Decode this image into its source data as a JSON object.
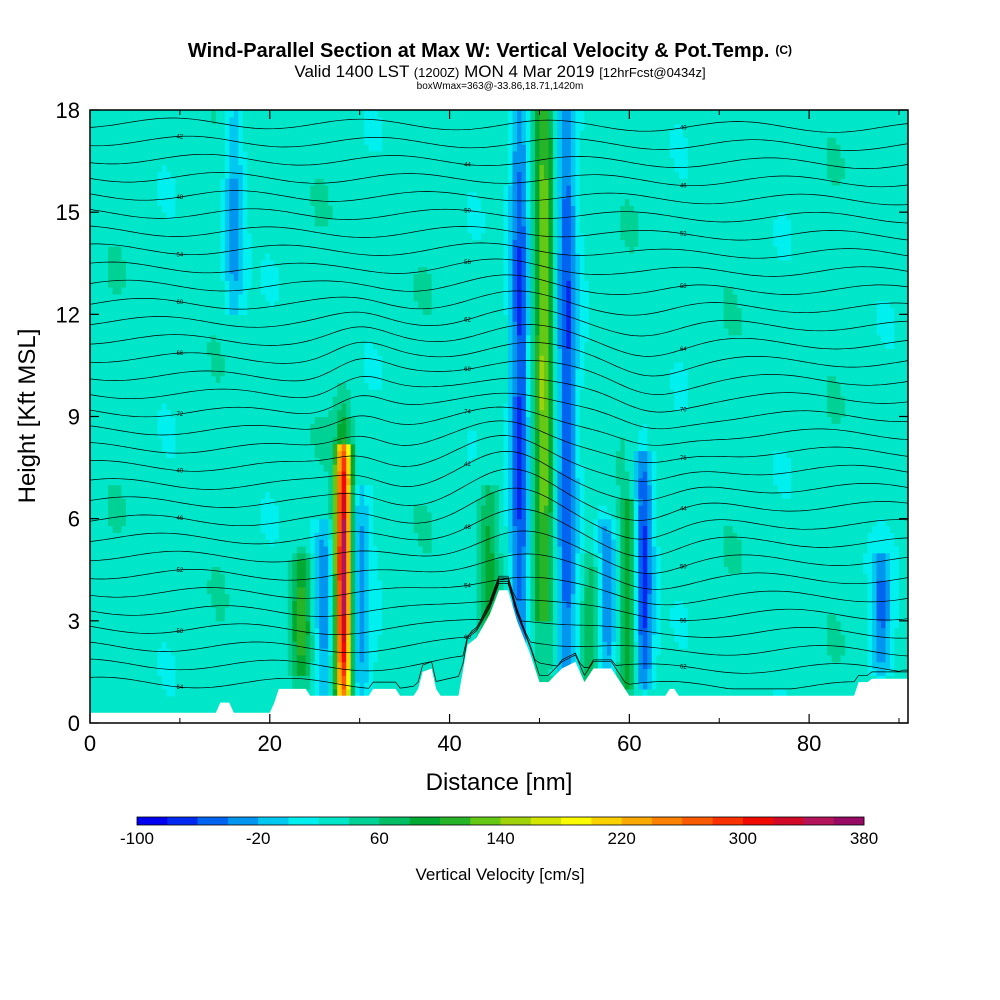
{
  "chart_data": {
    "type": "heatmap",
    "title": "Wind-Parallel Section at Max W: Vertical Velocity & Pot.Temp.",
    "title_mark": "(C)",
    "subtitle_main": "Valid 1400 LST",
    "subtitle_z": "(1200Z)",
    "subtitle_date": "MON 4 Mar 2019",
    "subtitle_fcst": "[12hrFcst@0434z]",
    "subtitle_box": "boxWmax=363@-33.86,18.71,1420m",
    "xlabel": "Distance [nm]",
    "ylabel": "Height [Kft MSL]",
    "xlim": [
      0,
      91
    ],
    "ylim": [
      0,
      18
    ],
    "x_ticks": [
      0,
      20,
      40,
      60,
      80
    ],
    "y_ticks": [
      0,
      3,
      6,
      9,
      12,
      15,
      18
    ],
    "colorbar": {
      "label": "Vertical Velocity [cm/s]",
      "range": [
        -100,
        380
      ],
      "tick_values": [
        -100,
        -20,
        60,
        140,
        220,
        300,
        380
      ],
      "colors": [
        "#0000f0",
        "#0028f0",
        "#0064f0",
        "#0096f0",
        "#00c8f0",
        "#00f0f0",
        "#00e6c8",
        "#00d296",
        "#00be64",
        "#00aa32",
        "#28b428",
        "#64c814",
        "#a0d20a",
        "#d2e600",
        "#fafa00",
        "#fad200",
        "#faaa00",
        "#fa8200",
        "#fa5a00",
        "#fa3200",
        "#f00a00",
        "#d20a28",
        "#b4145a",
        "#960a64"
      ]
    },
    "background_wvel": 30,
    "updrafts": [
      {
        "x": 28.2,
        "y_base": 0.8,
        "y_top": 8.2,
        "peak": 363
      },
      {
        "x": 23.5,
        "y_base": 1.5,
        "y_top": 5.0,
        "peak": 110
      },
      {
        "x": 50.5,
        "y_base": 3.0,
        "y_top": 18.0,
        "peak": 140
      },
      {
        "x": 44.3,
        "y_base": 2.0,
        "y_top": 7.0,
        "peak": 90
      },
      {
        "x": 60.0,
        "y_base": 1.0,
        "y_top": 6.5,
        "peak": 110
      },
      {
        "x": 55.8,
        "y_base": 1.0,
        "y_top": 5.0,
        "peak": 85
      }
    ],
    "downdrafts": [
      {
        "x": 26.0,
        "y_base": 0.8,
        "y_top": 6.0,
        "peak": -40
      },
      {
        "x": 30.0,
        "y_base": 0.8,
        "y_top": 7.0,
        "peak": -30
      },
      {
        "x": 47.8,
        "y_base": 1.5,
        "y_top": 18.0,
        "peak": -70
      },
      {
        "x": 53.0,
        "y_base": 1.5,
        "y_top": 18.0,
        "peak": -60
      },
      {
        "x": 61.5,
        "y_base": 1.0,
        "y_top": 8.0,
        "peak": -80
      },
      {
        "x": 57.5,
        "y_base": 1.0,
        "y_top": 6.0,
        "peak": -40
      },
      {
        "x": 16.0,
        "y_base": 12.0,
        "y_top": 18.0,
        "peak": -30
      },
      {
        "x": 88.0,
        "y_base": 1.5,
        "y_top": 5.0,
        "peak": -40
      }
    ],
    "terrain": [
      [
        0,
        0.3
      ],
      [
        14,
        0.3
      ],
      [
        14.5,
        0.6
      ],
      [
        15.5,
        0.6
      ],
      [
        16,
        0.3
      ],
      [
        20,
        0.3
      ],
      [
        20.5,
        0.6
      ],
      [
        21,
        1.0
      ],
      [
        24,
        1.0
      ],
      [
        24.5,
        0.8
      ],
      [
        27,
        0.8
      ],
      [
        31,
        0.8
      ],
      [
        31.5,
        1.0
      ],
      [
        34,
        1.0
      ],
      [
        34.5,
        0.8
      ],
      [
        36,
        0.8
      ],
      [
        36.5,
        1.0
      ],
      [
        37,
        1.5
      ],
      [
        38,
        1.6
      ],
      [
        38.5,
        1.0
      ],
      [
        39,
        0.8
      ],
      [
        41,
        0.8
      ],
      [
        42,
        2.3
      ],
      [
        43,
        2.5
      ],
      [
        44.5,
        3.2
      ],
      [
        45.5,
        3.9
      ],
      [
        46.5,
        3.9
      ],
      [
        47.5,
        3.0
      ],
      [
        49,
        2.0
      ],
      [
        50,
        1.2
      ],
      [
        51,
        1.2
      ],
      [
        52.5,
        1.6
      ],
      [
        54,
        1.8
      ],
      [
        55,
        1.2
      ],
      [
        56,
        1.6
      ],
      [
        58,
        1.6
      ],
      [
        59,
        1.2
      ],
      [
        60,
        0.8
      ],
      [
        64,
        0.8
      ],
      [
        64.5,
        1.0
      ],
      [
        65,
        1.0
      ],
      [
        65.5,
        0.8
      ],
      [
        75,
        0.8
      ],
      [
        85,
        0.8
      ],
      [
        85.5,
        1.2
      ],
      [
        86.5,
        1.2
      ],
      [
        87,
        1.3
      ],
      [
        91,
        1.3
      ]
    ],
    "isentropes": {
      "count": 32,
      "labels": [
        "40",
        "42",
        "44",
        "46",
        "48",
        "50",
        "52",
        "54",
        "56",
        "58",
        "60",
        "62",
        "64",
        "66",
        "68",
        "70",
        "72",
        "74",
        "76"
      ]
    }
  }
}
